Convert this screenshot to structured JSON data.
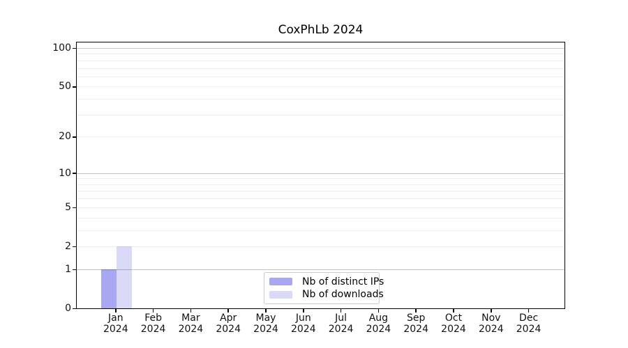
{
  "chart_data": {
    "type": "bar",
    "title": "CoxPhLb 2024",
    "xlabel": "",
    "ylabel": "",
    "yscale": "log1p",
    "ylim": [
      0,
      100
    ],
    "yticks": [
      0,
      1,
      2,
      5,
      10,
      20,
      50,
      100
    ],
    "decade_gridlines": [
      1,
      10,
      100
    ],
    "minor_gridlines": [
      2,
      3,
      4,
      5,
      6,
      7,
      8,
      9,
      20,
      30,
      40,
      50,
      60,
      70,
      80,
      90
    ],
    "grid": true,
    "categories": [
      {
        "month": "Jan",
        "year": "2024"
      },
      {
        "month": "Feb",
        "year": "2024"
      },
      {
        "month": "Mar",
        "year": "2024"
      },
      {
        "month": "Apr",
        "year": "2024"
      },
      {
        "month": "May",
        "year": "2024"
      },
      {
        "month": "Jun",
        "year": "2024"
      },
      {
        "month": "Jul",
        "year": "2024"
      },
      {
        "month": "Aug",
        "year": "2024"
      },
      {
        "month": "Sep",
        "year": "2024"
      },
      {
        "month": "Oct",
        "year": "2024"
      },
      {
        "month": "Nov",
        "year": "2024"
      },
      {
        "month": "Dec",
        "year": "2024"
      }
    ],
    "series": [
      {
        "name": "Nb of distinct IPs",
        "color": "#a7a7f2",
        "values": [
          1,
          0,
          0,
          0,
          0,
          0,
          0,
          0,
          0,
          0,
          0,
          0
        ]
      },
      {
        "name": "Nb of downloads",
        "color": "#dadaf8",
        "values": [
          2,
          0,
          0,
          0,
          0,
          0,
          0,
          0,
          0,
          0,
          0,
          0
        ]
      }
    ],
    "legend": {
      "position": "lower center",
      "entries": [
        "Nb of distinct IPs",
        "Nb of downloads"
      ]
    },
    "colors": {
      "background": "#ffffff",
      "spine": "#000000",
      "decade_grid": "#c6c6c6",
      "minor_grid": "#ededed"
    }
  }
}
